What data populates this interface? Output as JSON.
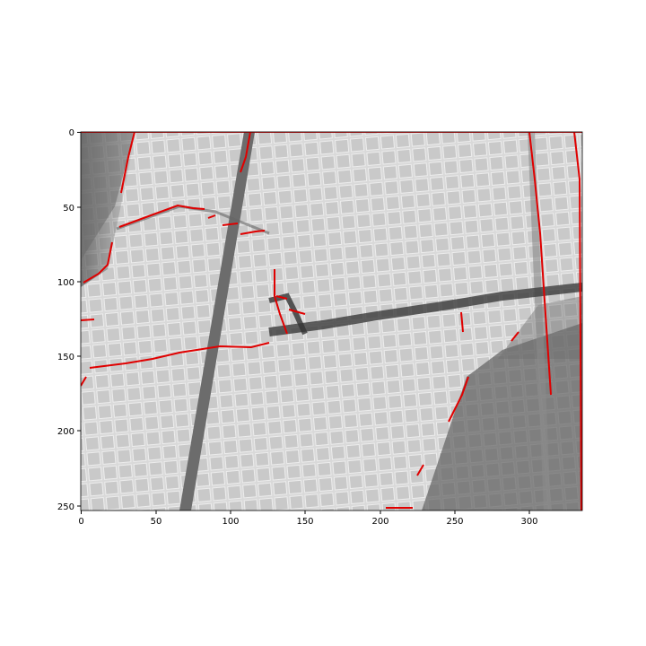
{
  "figure": {
    "image": "grayscale photograph of a cracked square-tile wall with detected crack edges overlaid in red",
    "overlay_color": "#e00000",
    "x_ticks": [
      "0",
      "50",
      "100",
      "150",
      "200",
      "250",
      "300"
    ],
    "y_ticks": [
      "0",
      "50",
      "100",
      "150",
      "200",
      "250"
    ],
    "x_range": [
      0,
      335
    ],
    "y_range": [
      0,
      253
    ]
  }
}
